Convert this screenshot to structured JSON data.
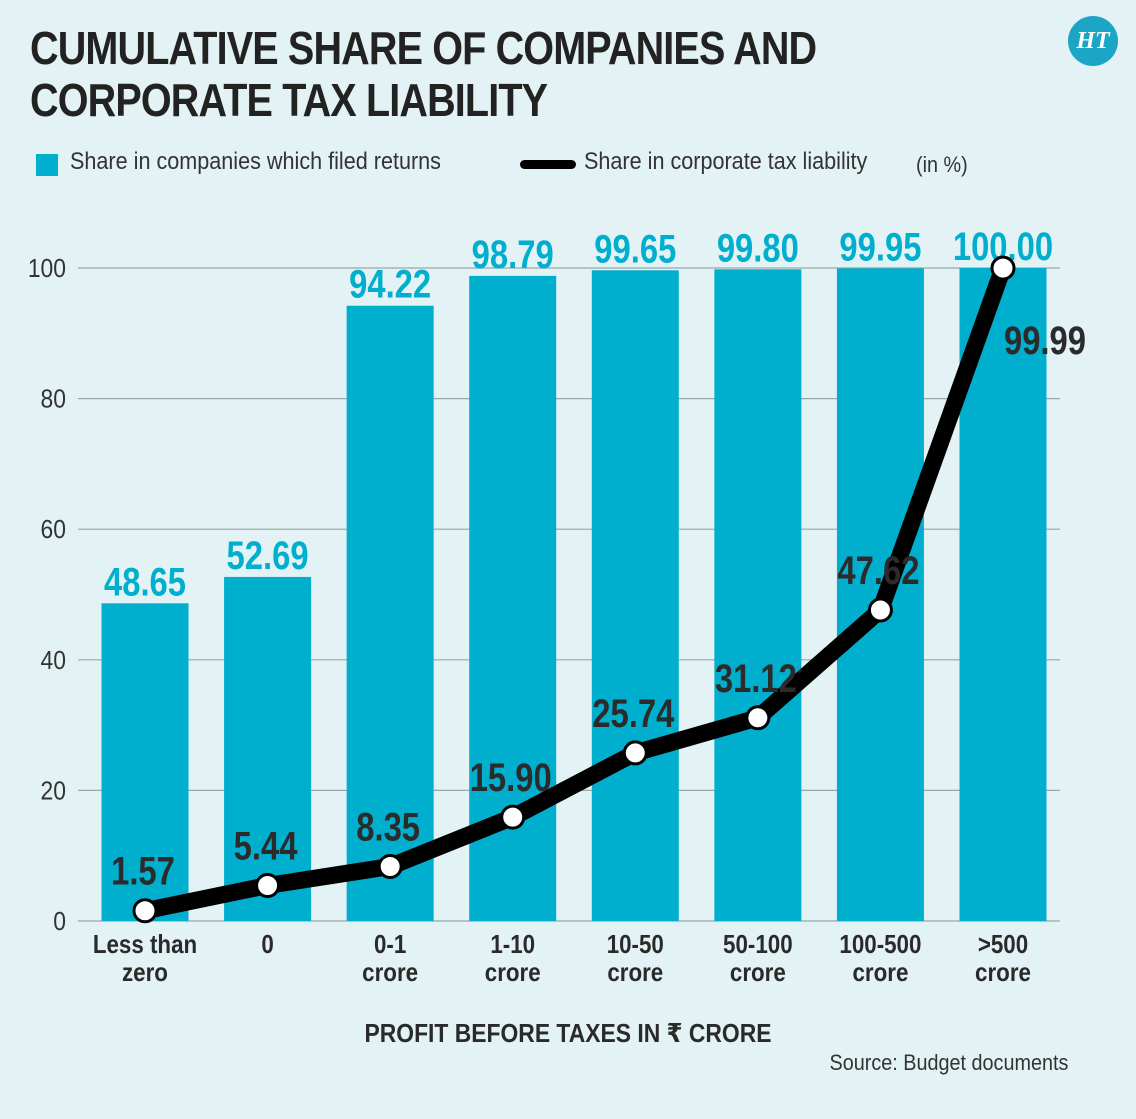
{
  "title_lines": [
    "CUMULATIVE SHARE OF COMPANIES AND",
    "CORPORATE TAX LIABILITY"
  ],
  "logo_text": "HT",
  "legend": {
    "companies_label": "Share in companies which filed returns",
    "tax_label": "Share in corporate tax liability",
    "unit": "(in %)"
  },
  "source": "Source: Budget documents",
  "colors": {
    "bar": "#00afce",
    "bar_label": "#00afce",
    "line": "#000000",
    "line_label": "#2b2b2b",
    "background": "#e3f2f4"
  },
  "chart_data": {
    "type": "bar",
    "categories": [
      [
        "Less than",
        "zero"
      ],
      [
        "0"
      ],
      [
        "0-1",
        "crore"
      ],
      [
        "1-10",
        "crore"
      ],
      [
        "10-50",
        "crore"
      ],
      [
        "50-100",
        "crore"
      ],
      [
        "100-500",
        "crore"
      ],
      [
        ">500",
        "crore"
      ]
    ],
    "series": [
      {
        "name": "Share in companies which filed returns",
        "type": "bar",
        "values": [
          48.65,
          52.69,
          94.22,
          98.79,
          99.65,
          99.8,
          99.95,
          100.0
        ],
        "labels": [
          "48.65",
          "52.69",
          "94.22",
          "98.79",
          "99.65",
          "99.80",
          "99.95",
          "100.00"
        ]
      },
      {
        "name": "Share in corporate tax liability",
        "type": "line",
        "values": [
          1.57,
          5.44,
          8.35,
          15.9,
          25.74,
          31.12,
          47.62,
          99.99
        ],
        "labels": [
          "1.57",
          "5.44",
          "8.35",
          "15.90",
          "25.74",
          "31.12",
          "47.62",
          "99.99"
        ]
      }
    ],
    "xlabel": "PROFIT BEFORE TAXES IN ₹ CRORE",
    "ylabel": "",
    "ylim": [
      0,
      100
    ],
    "yticks": [
      0,
      20,
      40,
      60,
      80,
      100
    ],
    "grid": true,
    "legend_position": "top-left"
  }
}
